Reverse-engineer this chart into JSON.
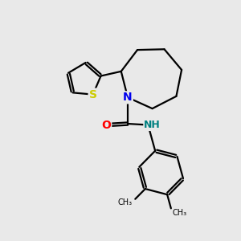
{
  "background_color": "#e9e9e9",
  "atom_colors": {
    "N": "#0000ee",
    "O": "#ff0000",
    "S": "#cccc00",
    "NH": "#008080",
    "C": "#000000"
  },
  "bond_color": "#000000",
  "bond_width": 1.6,
  "figsize": [
    3.0,
    3.0
  ],
  "dpi": 100,
  "xlim": [
    0,
    10
  ],
  "ylim": [
    0,
    10
  ]
}
